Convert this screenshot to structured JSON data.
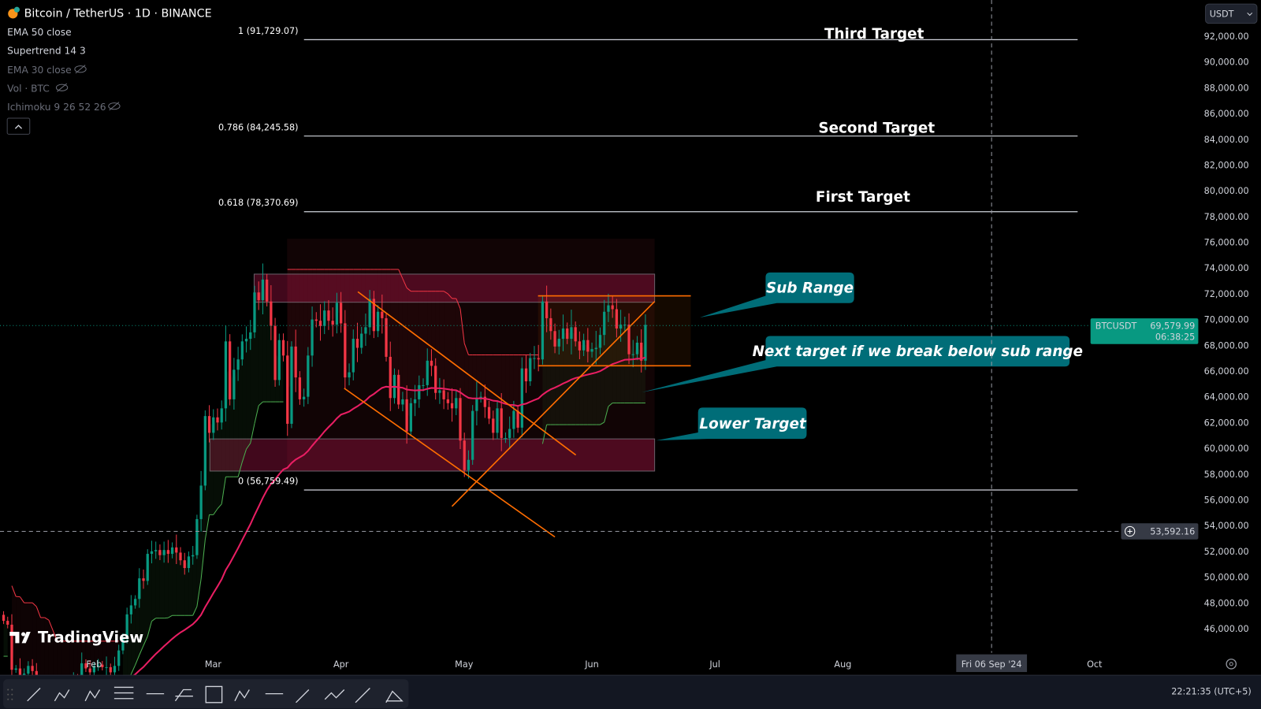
{
  "header": {
    "symbol_title": "Bitcoin / TetherUS · 1D · BINANCE",
    "currency_button": "USDT",
    "indicators": [
      {
        "label": "EMA 50 close",
        "hidden": false
      },
      {
        "label": "Supertrend 14 3",
        "hidden": false
      },
      {
        "label": "EMA 30 close",
        "hidden": true
      },
      {
        "label": "Vol · BTC",
        "hidden": true
      },
      {
        "label": "Ichimoku 9 26 52 26",
        "hidden": true
      }
    ]
  },
  "footer": {
    "clock": "22:21:35 (UTC+5)",
    "toolbar_icons": [
      "trend-line-icon",
      "abcd-pattern-icon",
      "elliott-wave-icon",
      "parallel-channel-icon",
      "horizontal-ray-icon",
      "pitchfork-icon",
      "rectangle-icon",
      "xabcd-pattern-icon",
      "horizontal-line-icon",
      "arrow-icon",
      "path-icon",
      "ray-icon",
      "brush-icon"
    ]
  },
  "logo": "TradingView",
  "colors": {
    "up": "#089981",
    "down": "#f23645",
    "ema": "#e91e63",
    "drawing": "#ff6d00",
    "callout": "#006d78",
    "supertrend_up": "#4caf50"
  },
  "chart_data": {
    "type": "candlestick",
    "title": "Bitcoin / TetherUS · 1D · BINANCE",
    "start_date": "2024-01-10",
    "closes": [
      46600,
      46300,
      42800,
      42900,
      41700,
      42500,
      43100,
      42700,
      41300,
      41600,
      41600,
      41500,
      39500,
      39900,
      40100,
      39900,
      41800,
      42100,
      42000,
      43300,
      42900,
      42600,
      43100,
      43200,
      43000,
      43000,
      42600,
      43100,
      44300,
      45300,
      47100,
      47800,
      48300,
      49900,
      49700,
      51800,
      52000,
      52100,
      51700,
      52100,
      51800,
      52300,
      51900,
      51300,
      50700,
      51600,
      51700,
      54500,
      57100,
      62500,
      61200,
      62400,
      62000,
      63100,
      68300,
      63800,
      66100,
      66900,
      68300,
      68500,
      69000,
      72100,
      71500,
      73100,
      71400,
      69500,
      65300,
      68400,
      67200,
      61900,
      67900,
      65500,
      63800,
      64000,
      67200,
      70000,
      69900,
      69500,
      70700,
      69900,
      69600,
      71300,
      69700,
      65500,
      65900,
      68500,
      67800,
      68900,
      69400,
      71600,
      69100,
      70600,
      70100,
      67100,
      63900,
      65700,
      63400,
      63800,
      61300,
      63500,
      63800,
      64900,
      64900,
      66800,
      66400,
      64300,
      64500,
      63800,
      63500,
      63100,
      63900,
      60600,
      58300,
      59100,
      62900,
      63900,
      64000,
      63200,
      62300,
      61200,
      63100,
      60800,
      60800,
      61500,
      62900,
      61600,
      66200,
      65200,
      67000,
      67000,
      66900,
      71400,
      70100,
      69100,
      67900,
      68500,
      69300,
      68500,
      69400,
      68300,
      67600,
      68400,
      67500,
      67700,
      67800,
      68800,
      70600,
      71100,
      70800,
      69300,
      69600,
      69600,
      67300,
      67300,
      68200,
      66800,
      69579.99
    ],
    "x_tick_labels": [
      "Feb",
      "Mar",
      "Apr",
      "May",
      "Jun",
      "Jul",
      "Aug",
      "Oct"
    ],
    "y_ticks": [
      92000,
      90000,
      88000,
      86000,
      84000,
      82000,
      80000,
      78000,
      76000,
      74000,
      72000,
      70000,
      68000,
      66000,
      64000,
      62000,
      60000,
      58000,
      56000,
      54000,
      52000,
      50000,
      48000,
      46000
    ],
    "y_tick_labels": [
      "92,000.00",
      "90,000.00",
      "88,000.00",
      "86,000.00",
      "84,000.00",
      "82,000.00",
      "80,000.00",
      "78,000.00",
      "76,000.00",
      "74,000.00",
      "72,000.00",
      "70,000.00",
      "68,000.00",
      "66,000.00",
      "64,000.00",
      "62,000.00",
      "60,000.00",
      "58,000.00",
      "56,000.00",
      "54,000.00",
      "52,000.00",
      "50,000.00",
      "48,000.00",
      "46,000.00"
    ],
    "ylim": [
      44800,
      93600
    ],
    "last_price": {
      "symbol": "BTCUSDT",
      "price": "69,579.99",
      "countdown": "06:38:25"
    },
    "crosshair": {
      "price": "53,592.16",
      "date": "Fri 06 Sep '24"
    },
    "fib_levels": [
      {
        "label": "1 (91,729.07)",
        "price": 91729.07,
        "target": "Third Target"
      },
      {
        "label": "0.786 (84,245.58)",
        "price": 84245.58,
        "target": "Second Target"
      },
      {
        "label": "0.618 (78,370.69)",
        "price": 78370.69,
        "target": "First Target"
      },
      {
        "label": "0 (56,759.49)",
        "price": 56759.49,
        "target": ""
      }
    ],
    "callouts": [
      {
        "text": "Sub Range",
        "price": 70000
      },
      {
        "text": "Next target if we break below sub range",
        "price": 64000
      },
      {
        "text": "Lower Target",
        "price": 60600
      }
    ],
    "indicators": [
      "EMA 50 close",
      "Supertrend 14 3"
    ]
  }
}
